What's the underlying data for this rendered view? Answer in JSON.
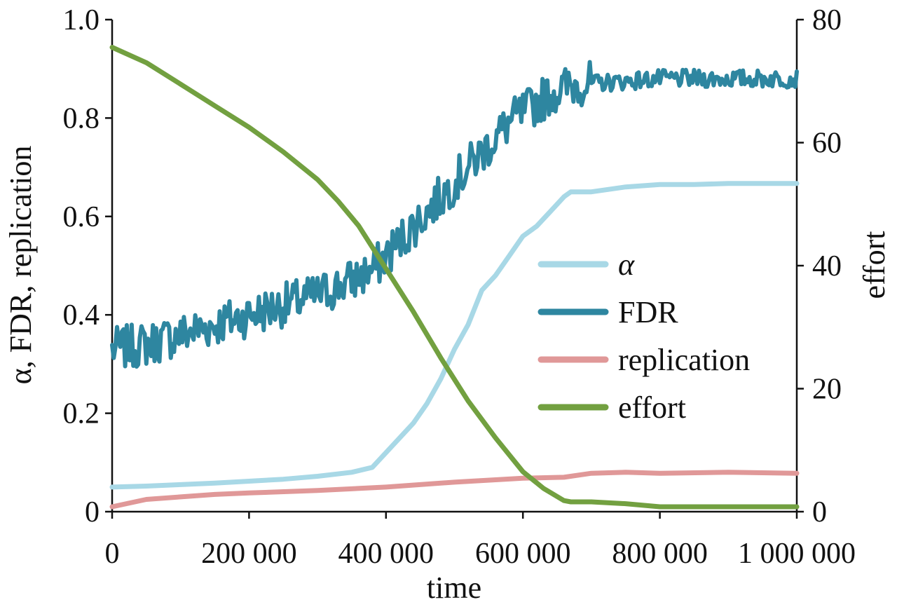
{
  "chart_data": {
    "type": "line",
    "xlabel": "time",
    "ylabel_left": "α, FDR, replication",
    "ylabel_right": "effort",
    "xlim": [
      0,
      1000000
    ],
    "ylim_left": [
      0,
      1.0
    ],
    "ylim_right": [
      0,
      80
    ],
    "x_ticks": [
      0,
      200000,
      400000,
      600000,
      800000,
      1000000
    ],
    "x_tick_labels": [
      "0",
      "200 000",
      "400 000",
      "600 000",
      "800 000",
      "1 000 000"
    ],
    "y_left_ticks": [
      0,
      0.2,
      0.4,
      0.6,
      0.8,
      1.0
    ],
    "y_left_tick_labels": [
      "0",
      "0.2",
      "0.4",
      "0.6",
      "0.8",
      "1.0"
    ],
    "y_right_ticks": [
      0,
      20,
      40,
      60,
      80
    ],
    "y_right_tick_labels": [
      "0",
      "20",
      "40",
      "60",
      "80"
    ],
    "grid": false,
    "legend_position": "right-middle",
    "series": [
      {
        "name": "α",
        "axis": "left",
        "color": "#a8d8e6",
        "x": [
          0,
          50000,
          100000,
          150000,
          200000,
          250000,
          300000,
          350000,
          380000,
          400000,
          420000,
          440000,
          460000,
          480000,
          500000,
          520000,
          540000,
          560000,
          580000,
          600000,
          620000,
          640000,
          660000,
          670000,
          700000,
          750000,
          800000,
          850000,
          900000,
          1000000
        ],
        "y": [
          0.05,
          0.052,
          0.055,
          0.058,
          0.062,
          0.066,
          0.072,
          0.08,
          0.09,
          0.12,
          0.15,
          0.18,
          0.22,
          0.27,
          0.33,
          0.38,
          0.45,
          0.48,
          0.52,
          0.56,
          0.58,
          0.61,
          0.64,
          0.65,
          0.65,
          0.66,
          0.665,
          0.665,
          0.667,
          0.667
        ]
      },
      {
        "name": "FDR",
        "axis": "left",
        "color": "#2e86a0",
        "noisy": true,
        "x": [
          0,
          50000,
          100000,
          150000,
          200000,
          250000,
          300000,
          350000,
          380000,
          400000,
          420000,
          440000,
          460000,
          480000,
          500000,
          520000,
          540000,
          560000,
          580000,
          600000,
          620000,
          640000,
          660000,
          680000,
          700000,
          750000,
          800000,
          850000,
          900000,
          1000000
        ],
        "y": [
          0.33,
          0.34,
          0.36,
          0.38,
          0.4,
          0.42,
          0.44,
          0.47,
          0.49,
          0.52,
          0.55,
          0.58,
          0.61,
          0.64,
          0.67,
          0.7,
          0.73,
          0.76,
          0.79,
          0.81,
          0.83,
          0.85,
          0.86,
          0.87,
          0.87,
          0.875,
          0.88,
          0.88,
          0.88,
          0.88
        ]
      },
      {
        "name": "replication",
        "axis": "left",
        "color": "#e09898",
        "x": [
          0,
          50000,
          100000,
          150000,
          200000,
          300000,
          400000,
          500000,
          600000,
          660000,
          700000,
          750000,
          800000,
          900000,
          1000000
        ],
        "y": [
          0.01,
          0.025,
          0.03,
          0.035,
          0.038,
          0.043,
          0.05,
          0.06,
          0.068,
          0.07,
          0.078,
          0.08,
          0.078,
          0.08,
          0.078
        ]
      },
      {
        "name": "effort",
        "axis": "right",
        "color": "#72a040",
        "x": [
          0,
          50000,
          100000,
          150000,
          200000,
          250000,
          300000,
          330000,
          360000,
          400000,
          440000,
          480000,
          520000,
          560000,
          600000,
          630000,
          660000,
          670000,
          700000,
          750000,
          800000,
          850000,
          900000,
          1000000
        ],
        "y": [
          75.5,
          73,
          69.5,
          66,
          62.5,
          58.5,
          54,
          50.5,
          46.5,
          39.5,
          32.5,
          25,
          18,
          12,
          6.5,
          3.8,
          1.8,
          1.6,
          1.6,
          1.3,
          0.8,
          0.8,
          0.8,
          0.8
        ]
      }
    ]
  }
}
